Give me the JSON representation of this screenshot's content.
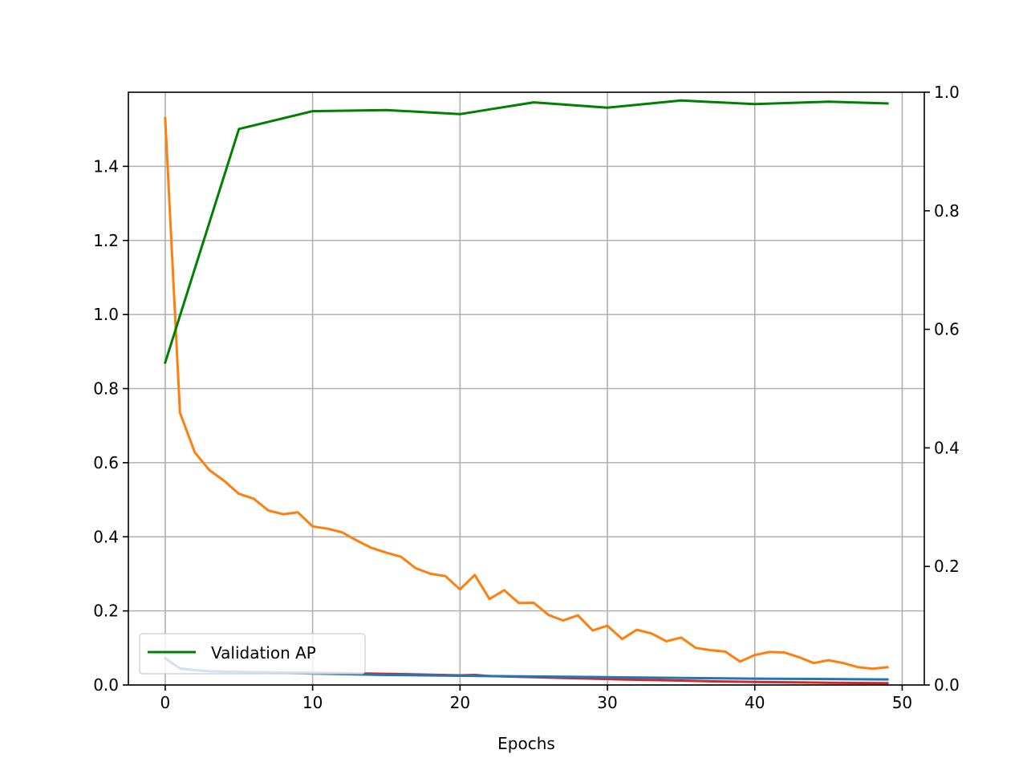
{
  "chart_data": {
    "type": "line",
    "xlabel": "Epochs",
    "ylabel": "",
    "y2label": "",
    "xlim": [
      -2.5,
      51.5
    ],
    "ylim": [
      0,
      1.6
    ],
    "y2lim": [
      0,
      1.0
    ],
    "xticks": [
      0,
      10,
      20,
      30,
      40,
      50
    ],
    "xtick_labels": [
      "0",
      "10",
      "20",
      "30",
      "40",
      "50"
    ],
    "yticks": [
      0,
      0.2,
      0.4,
      0.6,
      0.8,
      1.0,
      1.2,
      1.4
    ],
    "ytick_labels": [
      "0.0",
      "0.2",
      "0.4",
      "0.6",
      "0.8",
      "1.0",
      "1.2",
      "1.4"
    ],
    "y2ticks": [
      0,
      0.2,
      0.4,
      0.6,
      0.8,
      1.0
    ],
    "y2tick_labels": [
      "0.0",
      "0.2",
      "0.4",
      "0.6",
      "0.8",
      "1.0"
    ],
    "grid": true,
    "legend_position": "lower-left",
    "series": [
      {
        "key": "orange",
        "axis": "left",
        "color": "#ff7f0e",
        "x": [
          0,
          1,
          2,
          3,
          4,
          5,
          6,
          7,
          8,
          9,
          10,
          11,
          12,
          13,
          14,
          15,
          16,
          17,
          18,
          19,
          20,
          21,
          22,
          23,
          24,
          25,
          26,
          27,
          28,
          29,
          30,
          31,
          32,
          33,
          34,
          35,
          36,
          37,
          38,
          39,
          40,
          41,
          42,
          43,
          44,
          45,
          46,
          47,
          48,
          49
        ],
        "y": [
          1.53,
          0.735,
          0.628,
          0.58,
          0.551,
          0.516,
          0.503,
          0.471,
          0.461,
          0.466,
          0.428,
          0.422,
          0.412,
          0.39,
          0.37,
          0.357,
          0.346,
          0.315,
          0.3,
          0.294,
          0.258,
          0.297,
          0.232,
          0.256,
          0.221,
          0.222,
          0.189,
          0.174,
          0.188,
          0.147,
          0.16,
          0.124,
          0.149,
          0.139,
          0.118,
          0.128,
          0.1,
          0.094,
          0.09,
          0.063,
          0.081,
          0.089,
          0.088,
          0.075,
          0.059,
          0.067,
          0.059,
          0.048,
          0.044,
          0.048
        ]
      },
      {
        "key": "red",
        "axis": "left",
        "color": "#d62728",
        "x": [
          0,
          1,
          2,
          3,
          5,
          10,
          15,
          20,
          21,
          22,
          25,
          27,
          29,
          30,
          31,
          35,
          37,
          40,
          45,
          49
        ],
        "y": [
          0.072,
          0.044,
          0.04,
          0.037,
          0.035,
          0.033,
          0.03,
          0.026,
          0.027,
          0.024,
          0.021,
          0.019,
          0.017,
          0.016,
          0.015,
          0.012,
          0.01,
          0.008,
          0.006,
          0.005
        ]
      },
      {
        "key": "blue",
        "axis": "left",
        "color": "#1f77b4",
        "x": [
          0,
          1,
          2,
          3,
          5,
          10,
          15,
          20,
          25,
          30,
          35,
          40,
          45,
          49
        ],
        "y": [
          0.072,
          0.045,
          0.04,
          0.037,
          0.035,
          0.031,
          0.027,
          0.025,
          0.023,
          0.021,
          0.019,
          0.017,
          0.016,
          0.015
        ]
      },
      {
        "key": "green",
        "axis": "right",
        "name": "Validation AP",
        "color": "#008000",
        "x": [
          0,
          5,
          10,
          15,
          20,
          25,
          30,
          35,
          40,
          45,
          49
        ],
        "y": [
          0.544,
          0.938,
          0.968,
          0.97,
          0.963,
          0.983,
          0.974,
          0.986,
          0.98,
          0.984,
          0.981
        ]
      }
    ]
  }
}
